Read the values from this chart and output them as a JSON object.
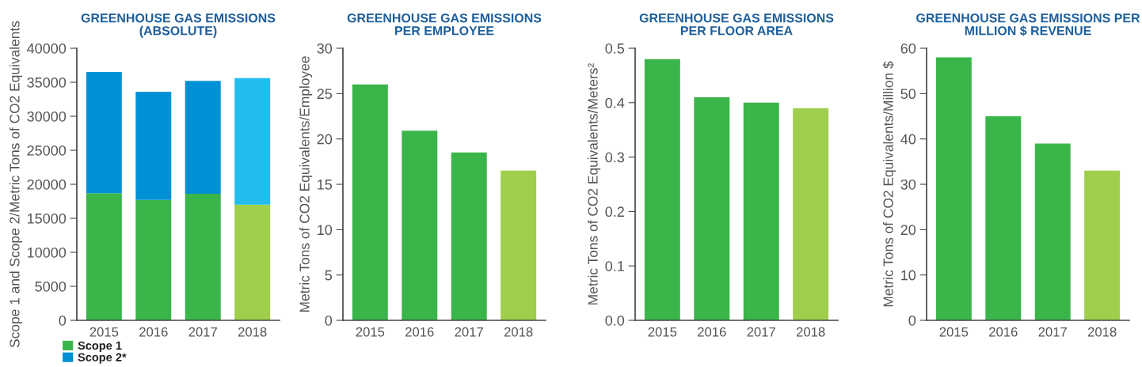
{
  "chart_data": [
    {
      "type": "bar",
      "title": "GREENHOUSE GAS EMISSIONS\n(ABSOLUTE)",
      "ylabel": "Scope 1 and Scope 2/Metric Tons of CO2 Equivalents",
      "categories": [
        "2015",
        "2016",
        "2017",
        "2018"
      ],
      "stacked": true,
      "legend": "bottom",
      "grid": false,
      "ylim": [
        0,
        40000
      ],
      "yticks": [
        0,
        5000,
        10000,
        15000,
        20000,
        25000,
        30000,
        35000,
        40000
      ],
      "series": [
        {
          "name": "Scope 1",
          "color": "#3ab54a",
          "colors": [
            "#3ab54a",
            "#3ab54a",
            "#3ab54a",
            "#9fce4c"
          ],
          "values": [
            18700,
            17700,
            18600,
            17000
          ]
        },
        {
          "name": "Scope 2*",
          "color": "#0090d6",
          "colors": [
            "#0090d6",
            "#0090d6",
            "#0090d6",
            "#22bdee"
          ],
          "values": [
            17800,
            15900,
            16600,
            18600
          ]
        }
      ]
    },
    {
      "type": "bar",
      "title": "GREENHOUSE GAS EMISSIONS\nPER EMPLOYEE",
      "ylabel": "Metric Tons of CO2 Equivalents/Employee",
      "categories": [
        "2015",
        "2016",
        "2017",
        "2018"
      ],
      "grid": false,
      "ylim": [
        0,
        30
      ],
      "yticks": [
        0,
        5,
        10,
        15,
        20,
        25,
        30
      ],
      "series": [
        {
          "colors": [
            "#3ab54a",
            "#3ab54a",
            "#3ab54a",
            "#9fce4c"
          ],
          "values": [
            26.0,
            20.9,
            18.5,
            16.5
          ]
        }
      ]
    },
    {
      "type": "bar",
      "title": "GREENHOUSE GAS EMISSIONS\nPER FLOOR AREA",
      "ylabel": "Metric Tons of CO2 Equivalents/Meters²",
      "categories": [
        "2015",
        "2016",
        "2017",
        "2018"
      ],
      "grid": false,
      "ylim": [
        0,
        0.5
      ],
      "yticks": [
        {
          "value": 0,
          "label": "0.0"
        },
        0.1,
        0.2,
        0.3,
        0.4,
        0.5
      ],
      "series": [
        {
          "colors": [
            "#3ab54a",
            "#3ab54a",
            "#3ab54a",
            "#9fce4c"
          ],
          "values": [
            0.48,
            0.41,
            0.4,
            0.39
          ]
        }
      ]
    },
    {
      "type": "bar",
      "title": "GREENHOUSE GAS EMISSIONS PER\nMILLION $ REVENUE",
      "ylabel": "Metric Tons of CO2 Equivalents/Million $",
      "categories": [
        "2015",
        "2016",
        "2017",
        "2018"
      ],
      "grid": false,
      "ylim": [
        0,
        60
      ],
      "yticks": [
        0,
        10,
        20,
        30,
        40,
        50,
        60
      ],
      "series": [
        {
          "colors": [
            "#3ab54a",
            "#3ab54a",
            "#3ab54a",
            "#9fce4c"
          ],
          "values": [
            58,
            45,
            39,
            33
          ]
        }
      ]
    }
  ]
}
